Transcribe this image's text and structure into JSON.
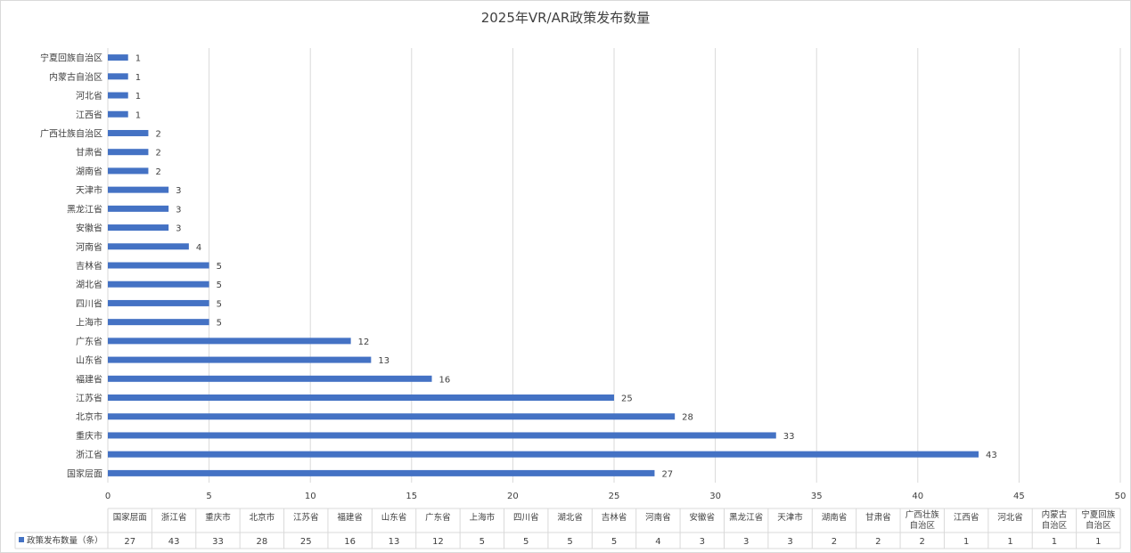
{
  "chart_data": {
    "type": "bar",
    "orientation": "horizontal",
    "title": "2025年VR/AR政策发布数量",
    "categories": [
      "国家层面",
      "浙江省",
      "重庆市",
      "北京市",
      "江苏省",
      "福建省",
      "山东省",
      "广东省",
      "上海市",
      "四川省",
      "湖北省",
      "吉林省",
      "河南省",
      "安徽省",
      "黑龙江省",
      "天津市",
      "湖南省",
      "甘肃省",
      "广西壮族自治区",
      "江西省",
      "河北省",
      "内蒙古自治区",
      "宁夏回族自治区"
    ],
    "series": [
      {
        "name": "政策发布数量（条）",
        "values": [
          27,
          43,
          33,
          28,
          25,
          16,
          13,
          12,
          5,
          5,
          5,
          5,
          4,
          3,
          3,
          3,
          2,
          2,
          2,
          1,
          1,
          1,
          1
        ]
      }
    ],
    "xlim": [
      0,
      50
    ],
    "x_ticks": [
      "0",
      "5",
      "10",
      "15",
      "20",
      "25",
      "30",
      "35",
      "40",
      "45",
      "50"
    ],
    "grid": "vertical",
    "data_labels": true,
    "data_table": true,
    "legend": "data-table",
    "colors": {
      "bar": "#4472c4",
      "grid": "#d9d9d9",
      "text": "#404040"
    }
  }
}
